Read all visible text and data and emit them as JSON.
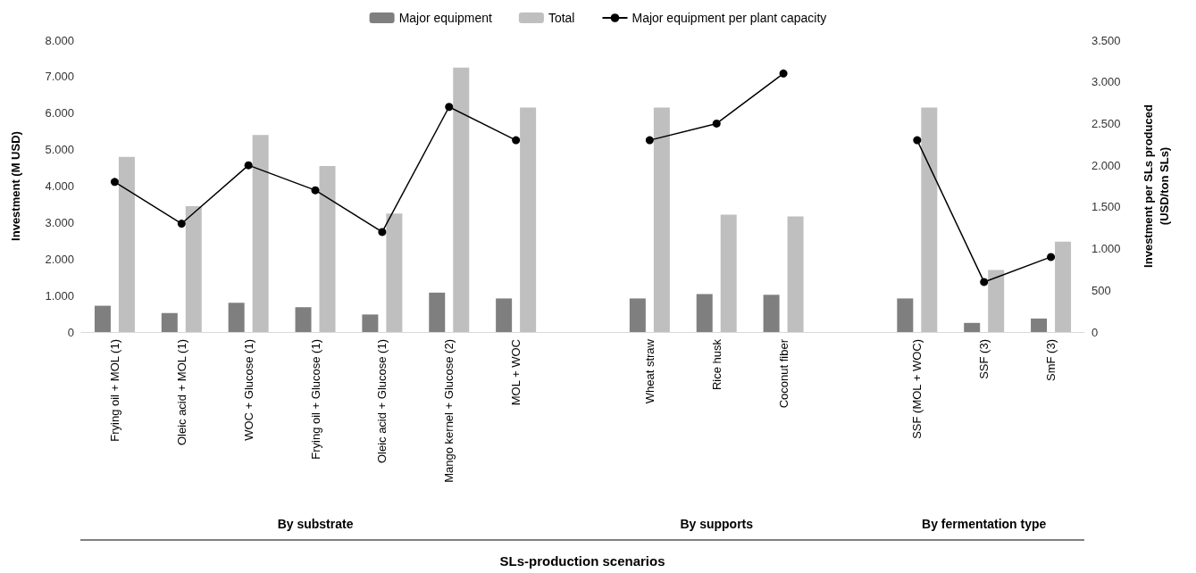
{
  "chart_data": {
    "type": "bar",
    "ylabel": "Investment (M USD)",
    "y2label": "Investment per SLs produced\n(USD/ton SLs)",
    "categories": [
      "Frying oil + MOL (1)",
      "Oleic acid + MOL (1)",
      "WOC + Glucose (1)",
      "Frying oil + Glucose (1)",
      "Oleic acid + Glucose (1)",
      "Mango kernel + Glucose (2)",
      "MOL + WOC",
      null,
      "Wheat straw",
      "Rice husk",
      "Coconut fiber",
      null,
      "SSF (MOL + WOC)",
      "SSF (3)",
      "SmF (3)"
    ],
    "series": [
      {
        "name": "Major equipment",
        "color": "#7f7f7f",
        "values": [
          720,
          520,
          800,
          680,
          480,
          1080,
          920,
          null,
          920,
          1040,
          1020,
          null,
          920,
          250,
          370
        ]
      },
      {
        "name": "Total",
        "color": "#bfbfbf",
        "values": [
          4800,
          3450,
          5400,
          4550,
          3250,
          7250,
          6150,
          null,
          6150,
          3220,
          3170,
          null,
          6150,
          1700,
          2480
        ]
      },
      {
        "name": "Major equipment per plant capacity",
        "type": "line",
        "axis": "y2",
        "color": "#000000",
        "values": [
          1800,
          1300,
          2000,
          1700,
          1200,
          2700,
          2300,
          null,
          2300,
          2500,
          3100,
          null,
          2300,
          600,
          900
        ]
      }
    ],
    "ylim": [
      0,
      8000
    ],
    "yticks": [
      0,
      {
        "value": 1000,
        "label": "1.000"
      },
      {
        "value": 2000,
        "label": "2.000"
      },
      {
        "value": 3000,
        "label": "3.000"
      },
      {
        "value": 4000,
        "label": "4.000"
      },
      {
        "value": 5000,
        "label": "5.000"
      },
      {
        "value": 6000,
        "label": "6.000"
      },
      {
        "value": 7000,
        "label": "7.000"
      },
      {
        "value": 8000,
        "label": "8.000"
      }
    ],
    "y2lim": [
      0,
      3500
    ],
    "y2ticks": [
      0,
      500,
      {
        "value": 1000,
        "label": "1.000"
      },
      {
        "value": 1500,
        "label": "1.500"
      },
      {
        "value": 2000,
        "label": "2.000"
      },
      {
        "value": 2500,
        "label": "2.500"
      },
      {
        "value": 3000,
        "label": "3.000"
      },
      {
        "value": 3500,
        "label": "3.500"
      }
    ],
    "annotations": [
      "By substrate",
      "By supports",
      "By fermentation type",
      "SLs-production scenarios"
    ],
    "legend": "top",
    "grid": false,
    "marker": "circle",
    "line_style": "solid"
  }
}
